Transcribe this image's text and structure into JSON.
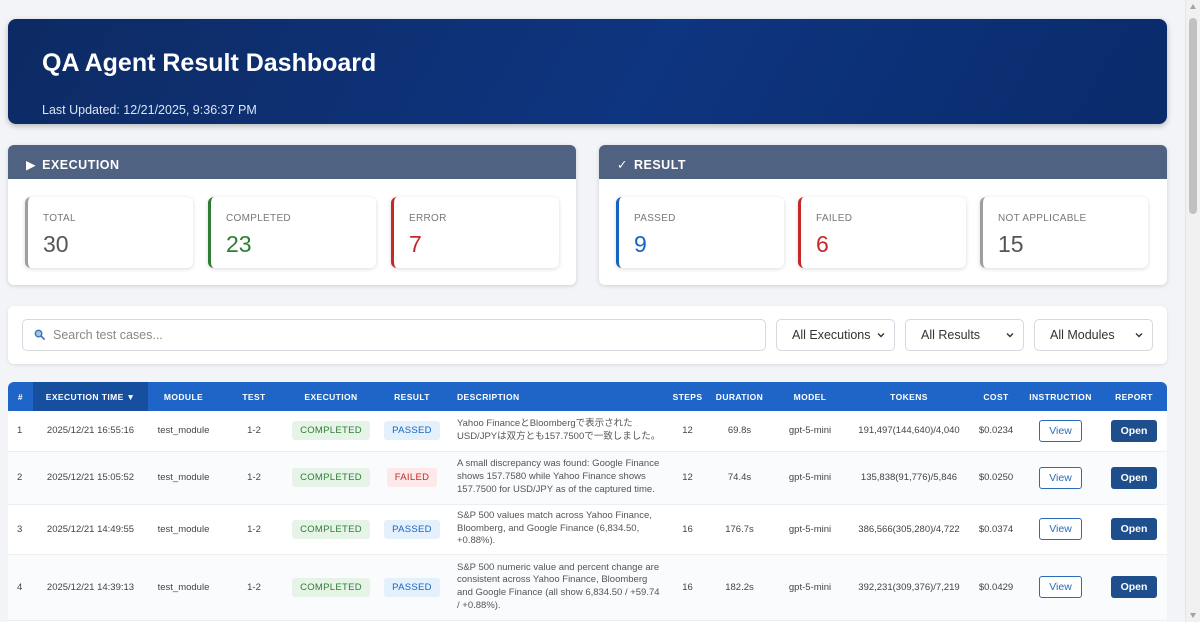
{
  "header": {
    "title": "QA Agent Result Dashboard",
    "last_updated": "Last Updated: 12/21/2025, 9:36:37 PM"
  },
  "execution_panel": {
    "icon": "play-icon",
    "icon_glyph": "▶",
    "title": "EXECUTION",
    "stats": [
      {
        "label": "TOTAL",
        "value": "30",
        "color": "#555555",
        "border": "#9e9e9e"
      },
      {
        "label": "COMPLETED",
        "value": "23",
        "color": "#2e7d32",
        "border": "#2e7d32"
      },
      {
        "label": "ERROR",
        "value": "7",
        "color": "#c62828",
        "border": "#c62828"
      }
    ]
  },
  "result_panel": {
    "icon": "check-icon",
    "icon_glyph": "✓",
    "title": "RESULT",
    "stats": [
      {
        "label": "PASSED",
        "value": "9",
        "color": "#1565c0",
        "border": "#1565c0"
      },
      {
        "label": "FAILED",
        "value": "6",
        "color": "#c62828",
        "border": "#c62828"
      },
      {
        "label": "NOT APPLICABLE",
        "value": "15",
        "color": "#555555",
        "border": "#9e9e9e"
      }
    ]
  },
  "filters": {
    "search_placeholder": "Search test cases...",
    "executions_select": "All Executions",
    "results_select": "All Results",
    "modules_select": "All Modules"
  },
  "table": {
    "columns": [
      "#",
      "EXECUTION TIME ▼",
      "MODULE",
      "TEST",
      "EXECUTION",
      "RESULT",
      "DESCRIPTION",
      "STEPS",
      "DURATION",
      "MODEL",
      "TOKENS",
      "COST",
      "INSTRUCTION",
      "REPORT"
    ],
    "view_label": "View",
    "open_label": "Open",
    "rows": [
      {
        "index": "1",
        "time": "2025/12/21 16:55:16",
        "module": "test_module",
        "test": "1-2",
        "execution": "COMPLETED",
        "result": "PASSED",
        "description": "Yahoo FinanceとBloombergで表示されたUSD/JPYは双方とも157.7500で一致しました。",
        "steps": "12",
        "duration": "69.8s",
        "model": "gpt-5-mini",
        "tokens": "191,497(144,640)/4,040",
        "cost": "$0.0234"
      },
      {
        "index": "2",
        "time": "2025/12/21 15:05:52",
        "module": "test_module",
        "test": "1-2",
        "execution": "COMPLETED",
        "result": "FAILED",
        "description": "A small discrepancy was found: Google Finance shows 157.7580 while Yahoo Finance shows 157.7500 for USD/JPY as of the captured time.",
        "steps": "12",
        "duration": "74.4s",
        "model": "gpt-5-mini",
        "tokens": "135,838(91,776)/5,846",
        "cost": "$0.0250"
      },
      {
        "index": "3",
        "time": "2025/12/21 14:49:55",
        "module": "test_module",
        "test": "1-2",
        "execution": "COMPLETED",
        "result": "PASSED",
        "description": "S&P 500 values match across Yahoo Finance, Bloomberg, and Google Finance (6,834.50, +0.88%).",
        "steps": "16",
        "duration": "176.7s",
        "model": "gpt-5-mini",
        "tokens": "386,566(305,280)/4,722",
        "cost": "$0.0374"
      },
      {
        "index": "4",
        "time": "2025/12/21 14:39:13",
        "module": "test_module",
        "test": "1-2",
        "execution": "COMPLETED",
        "result": "PASSED",
        "description": "S&P 500 numeric value and percent change are consistent across Yahoo Finance, Bloomberg and Google Finance (all show 6,834.50 / +59.74 / +0.88%).",
        "steps": "16",
        "duration": "182.2s",
        "model": "gpt-5-mini",
        "tokens": "392,231(309,376)/7,219",
        "cost": "$0.0429"
      }
    ]
  }
}
